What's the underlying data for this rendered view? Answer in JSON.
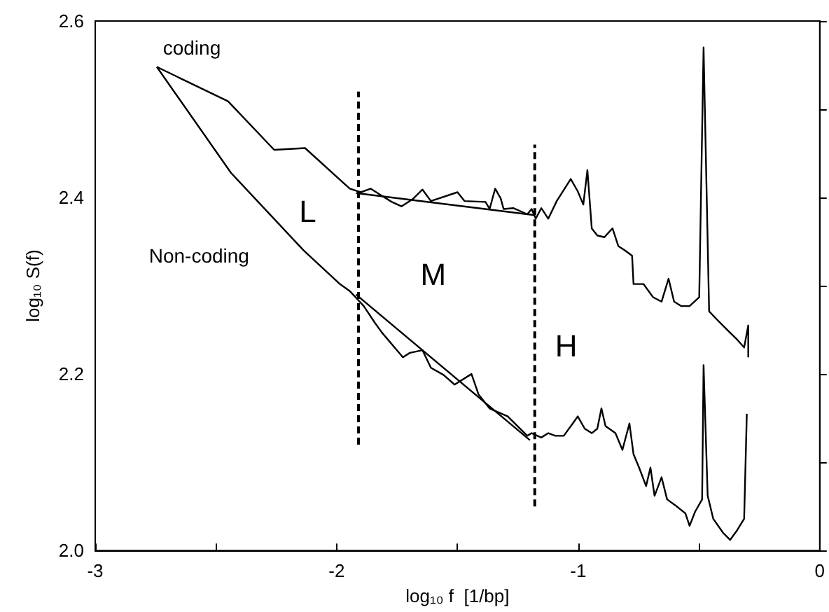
{
  "chart_data": {
    "type": "line",
    "xlabel": "log₁₀ f  [1/bp]",
    "ylabel": "log₁₀ S(f)",
    "xlim": [
      -3,
      0
    ],
    "ylim": [
      2.0,
      2.6
    ],
    "xticks": [
      -3,
      {
        "value": -2.5,
        "label": null
      },
      -2,
      {
        "value": -1.5,
        "label": null
      },
      -1,
      {
        "value": -0.5,
        "label": null
      },
      0
    ],
    "yticks": [
      {
        "value": 2.0,
        "label": "2.0"
      },
      {
        "value": 2.1,
        "label": null
      },
      {
        "value": 2.2,
        "label": "2.2"
      },
      {
        "value": 2.3,
        "label": null
      },
      {
        "value": 2.4,
        "label": "2.4"
      },
      {
        "value": 2.5,
        "label": null
      },
      {
        "value": 2.6,
        "label": "2.6"
      }
    ],
    "grid": false,
    "marker": "none",
    "series": [
      {
        "name": "coding",
        "color": "#000000",
        "line_style": "solid",
        "x": [
          -2.745,
          -2.45,
          -2.259,
          -2.131,
          -1.946,
          -1.9,
          -1.859,
          -1.825,
          -1.772,
          -1.732,
          -1.686,
          -1.645,
          -1.61,
          -1.5,
          -1.471,
          -1.384,
          -1.367,
          -1.344,
          -1.321,
          -1.309,
          -1.269,
          -1.211,
          -1.193,
          -1.176,
          -1.153,
          -1.124,
          -1.089,
          -1.031,
          -1.002,
          -0.979,
          -0.962,
          -0.944,
          -0.921,
          -0.892,
          -0.858,
          -0.834,
          -0.806,
          -0.777,
          -0.771,
          -0.73,
          -0.69,
          -0.655,
          -0.626,
          -0.603,
          -0.574,
          -0.539,
          -0.499,
          -0.481,
          -0.458,
          -0.423,
          -0.383,
          -0.342,
          -0.313,
          -0.296,
          -0.296
        ],
        "values": [
          2.548,
          2.509,
          2.454,
          2.456,
          2.41,
          2.406,
          2.41,
          2.404,
          2.395,
          2.39,
          2.398,
          2.409,
          2.396,
          2.406,
          2.396,
          2.395,
          2.387,
          2.41,
          2.399,
          2.387,
          2.388,
          2.381,
          2.387,
          2.376,
          2.388,
          2.376,
          2.396,
          2.421,
          2.407,
          2.392,
          2.431,
          2.365,
          2.357,
          2.355,
          2.365,
          2.345,
          2.34,
          2.334,
          2.302,
          2.302,
          2.287,
          2.282,
          2.308,
          2.282,
          2.277,
          2.277,
          2.287,
          2.57,
          2.271,
          2.261,
          2.25,
          2.239,
          2.23,
          2.255,
          2.219
        ]
      },
      {
        "name": "Non-coding",
        "color": "#000000",
        "line_style": "solid",
        "x": [
          -2.745,
          -2.438,
          -2.137,
          -1.987,
          -1.946,
          -1.888,
          -1.842,
          -1.813,
          -1.726,
          -1.697,
          -1.645,
          -1.61,
          -1.558,
          -1.512,
          -1.442,
          -1.413,
          -1.367,
          -1.292,
          -1.211,
          -1.193,
          -1.153,
          -1.124,
          -1.095,
          -1.06,
          -1.02,
          -1.002,
          -0.973,
          -0.944,
          -0.921,
          -0.904,
          -0.887,
          -0.846,
          -0.817,
          -0.788,
          -0.771,
          -0.748,
          -0.719,
          -0.701,
          -0.684,
          -0.655,
          -0.632,
          -0.597,
          -0.556,
          -0.539,
          -0.516,
          -0.487,
          -0.481,
          -0.464,
          -0.441,
          -0.4,
          -0.371,
          -0.342,
          -0.313,
          -0.302
        ],
        "values": [
          2.548,
          2.428,
          2.34,
          2.302,
          2.294,
          2.277,
          2.258,
          2.247,
          2.219,
          2.224,
          2.227,
          2.207,
          2.199,
          2.188,
          2.2,
          2.177,
          2.161,
          2.152,
          2.13,
          2.133,
          2.128,
          2.133,
          2.13,
          2.13,
          2.145,
          2.152,
          2.138,
          2.133,
          2.138,
          2.161,
          2.141,
          2.133,
          2.114,
          2.144,
          2.109,
          2.094,
          2.073,
          2.094,
          2.062,
          2.083,
          2.058,
          2.051,
          2.042,
          2.028,
          2.044,
          2.058,
          2.21,
          2.062,
          2.036,
          2.02,
          2.012,
          2.023,
          2.036,
          2.155
        ]
      },
      {
        "color": "#000000",
        "line_style": "solid",
        "x": [
          -1.92,
          -1.18
        ],
        "values": [
          2.405,
          2.38
        ]
      },
      {
        "color": "#000000",
        "line_style": "solid",
        "x": [
          -1.92,
          -1.2
        ],
        "values": [
          2.29,
          2.125
        ]
      },
      {
        "color": "#000000",
        "line_style": "dashed",
        "x": [
          -1.91,
          -1.91
        ],
        "values": [
          2.12,
          2.52
        ]
      },
      {
        "color": "#000000",
        "line_style": "dashed",
        "x": [
          -1.18,
          -1.18
        ],
        "values": [
          2.05,
          2.46
        ]
      }
    ],
    "annotations": [
      "L",
      "M",
      "H"
    ]
  }
}
